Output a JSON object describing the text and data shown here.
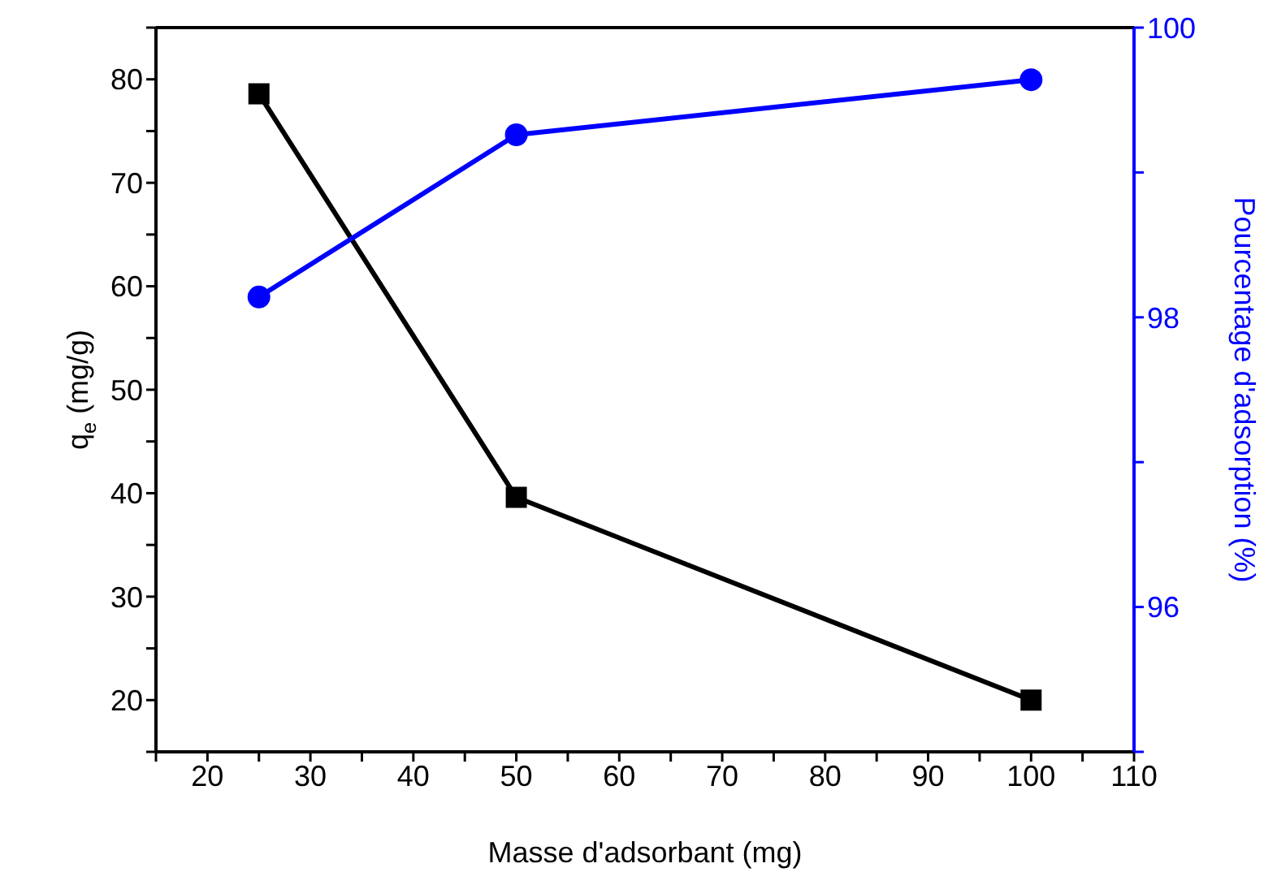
{
  "chart_data": {
    "type": "line",
    "xlabel": "Masse d'adsorbant (mg)",
    "ylabel": "q$_{e}$ (mg/g)",
    "y2label": "Pourcentage d'adsorption (%)",
    "x": [
      25,
      50,
      100
    ],
    "series": [
      {
        "color": "#000000",
        "marker": "square",
        "values": [
          78.6,
          39.6,
          20.0
        ]
      },
      {
        "color": "#0000ff",
        "marker": "circle",
        "axis": "y2",
        "values": [
          98.14,
          99.26,
          99.64
        ]
      }
    ],
    "xlim": [
      15,
      110
    ],
    "xticks": [
      {
        "value": 15,
        "label": null
      },
      20,
      {
        "value": 25,
        "label": null
      },
      30,
      {
        "value": 35,
        "label": null
      },
      40,
      {
        "value": 45,
        "label": null
      },
      50,
      {
        "value": 55,
        "label": null
      },
      60,
      {
        "value": 65,
        "label": null
      },
      70,
      {
        "value": 75,
        "label": null
      },
      80,
      {
        "value": 85,
        "label": null
      },
      90,
      {
        "value": 95,
        "label": null
      },
      100,
      {
        "value": 105,
        "label": null
      },
      110
    ],
    "ylim": [
      15,
      85
    ],
    "yticks": [
      {
        "value": 15,
        "label": null
      },
      20,
      {
        "value": 25,
        "label": null
      },
      30,
      {
        "value": 35,
        "label": null
      },
      40,
      {
        "value": 45,
        "label": null
      },
      50,
      {
        "value": 55,
        "label": null
      },
      60,
      {
        "value": 65,
        "label": null
      },
      70,
      {
        "value": 75,
        "label": null
      },
      80,
      {
        "value": 85,
        "label": null
      }
    ],
    "y2lim": [
      95,
      100
    ],
    "y2ticks": [
      {
        "value": 95,
        "label": null
      },
      96,
      {
        "value": 97,
        "label": null
      },
      98,
      {
        "value": 99,
        "label": null
      },
      100
    ],
    "grid": false,
    "legend": false,
    "line_style": "solid"
  }
}
